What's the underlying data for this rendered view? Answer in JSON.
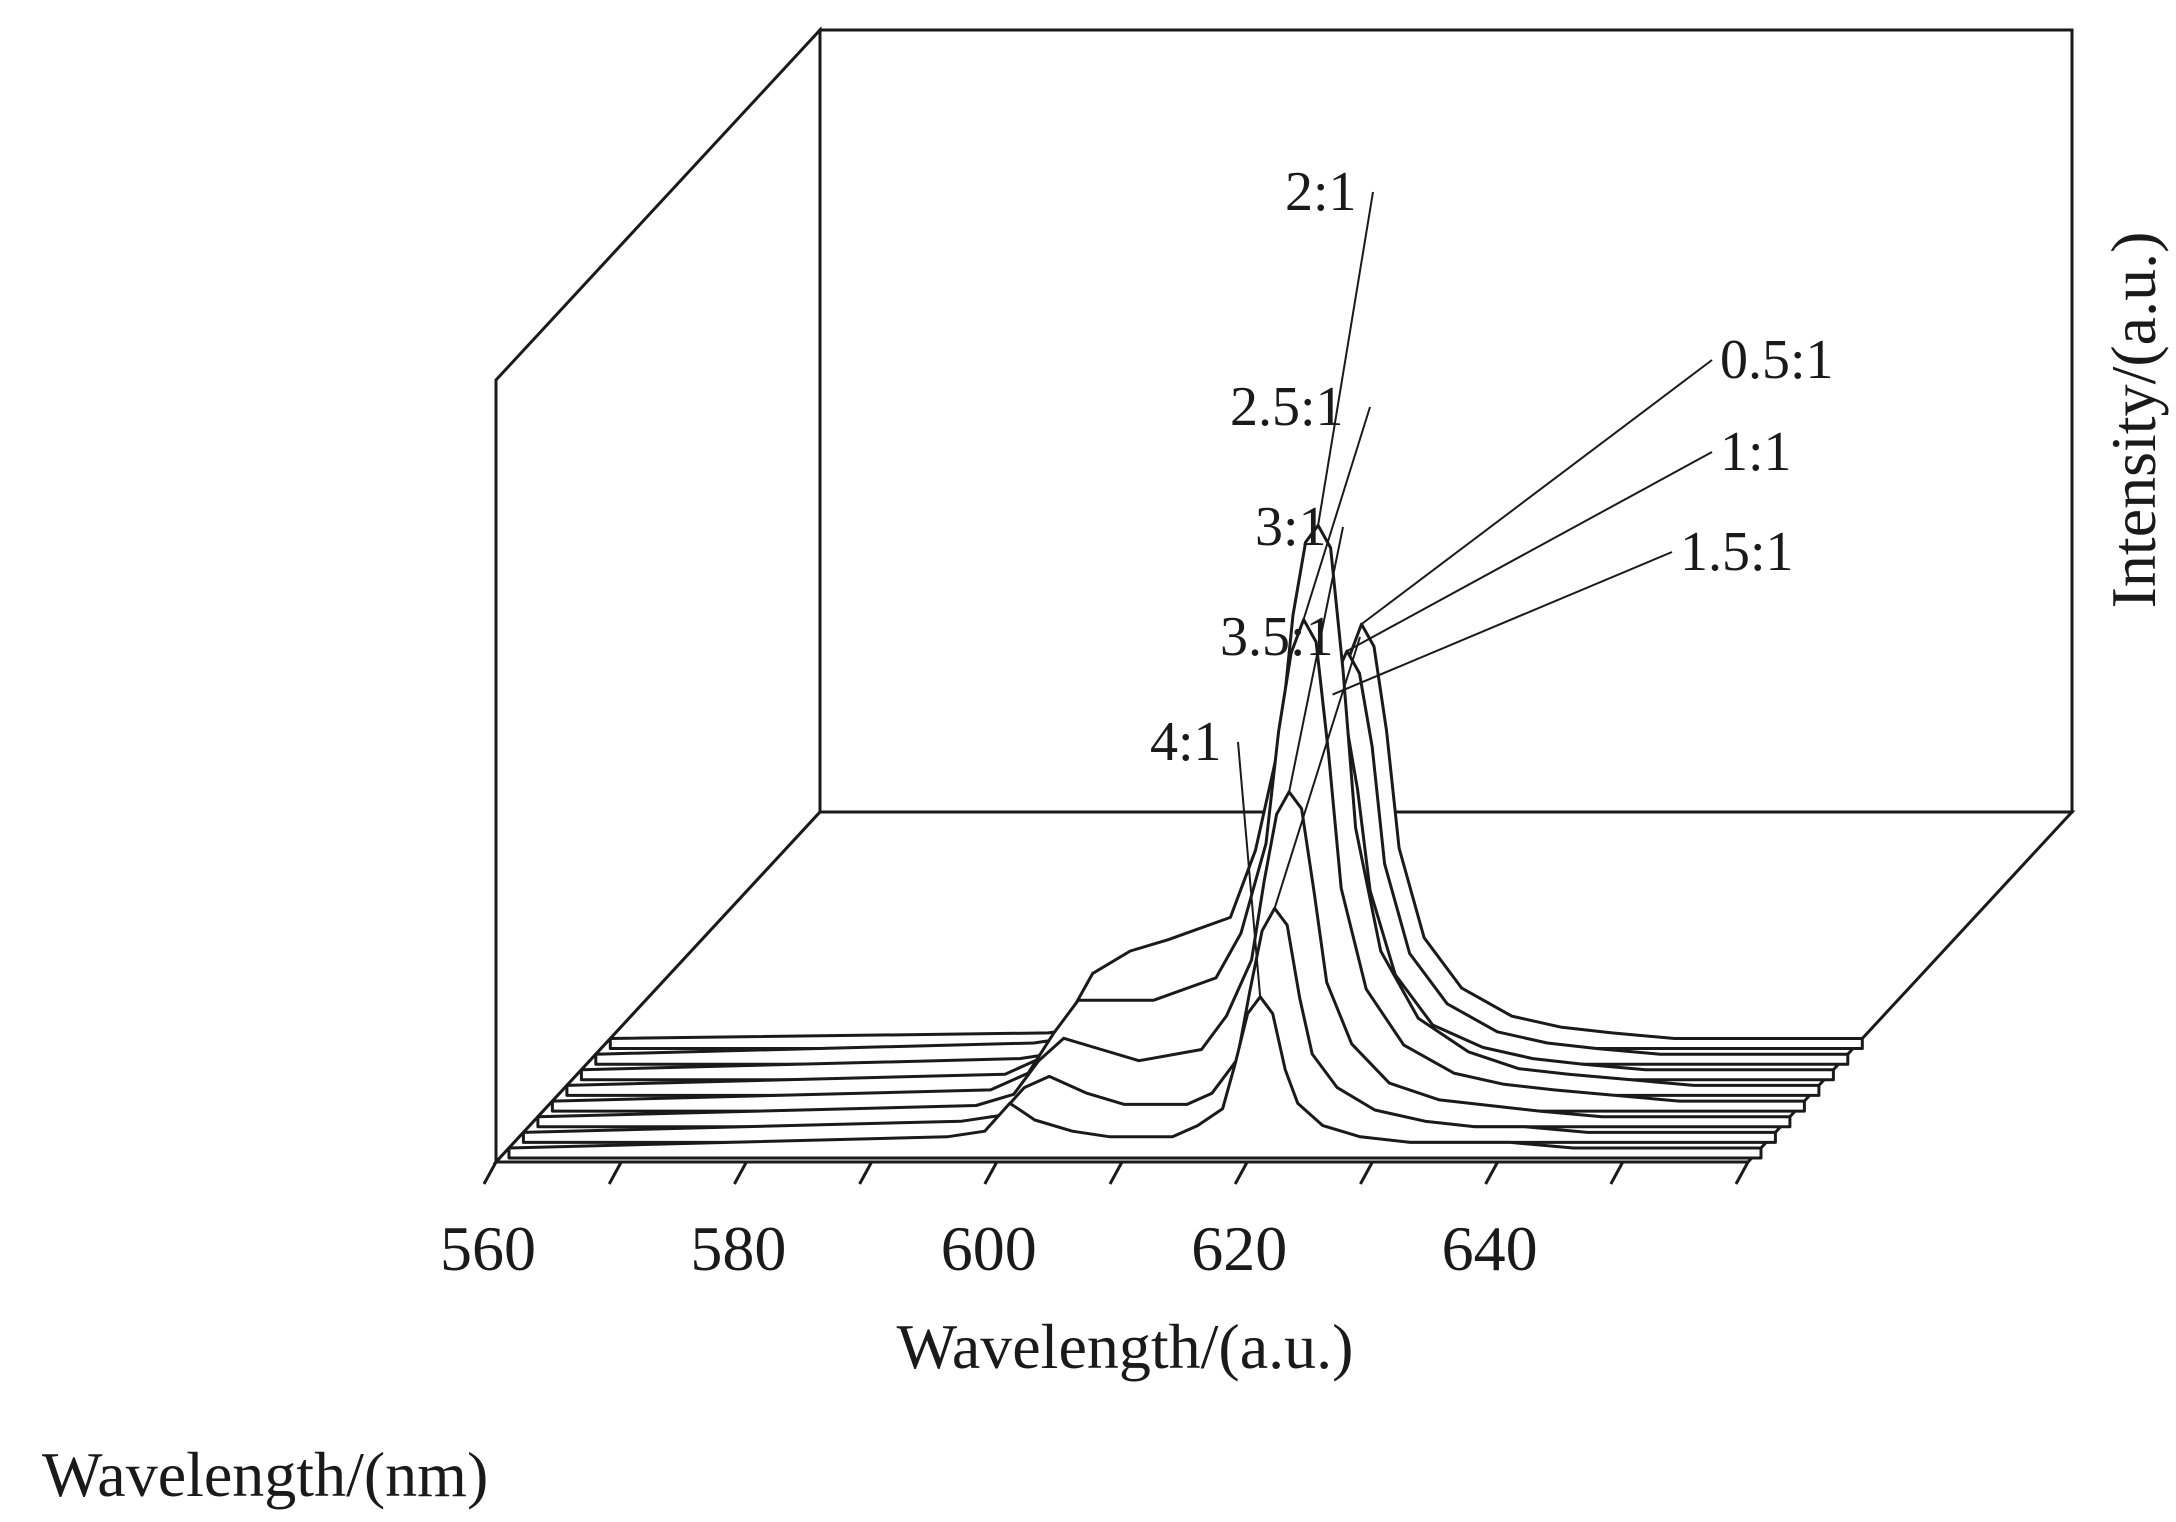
{
  "chart_data": {
    "type": "line",
    "subtype": "3d-waterfall",
    "xlabel": "Wavelength/(a.u.)",
    "zlabel": "Intensity/(a.u.)",
    "xlim": [
      560,
      660
    ],
    "xticks": [
      560,
      580,
      600,
      620,
      640
    ],
    "x": [
      560,
      595,
      598,
      600,
      602,
      605,
      608,
      613,
      615,
      617,
      618,
      619,
      620,
      621,
      622,
      623,
      625,
      628,
      632,
      636,
      640,
      645,
      650,
      660
    ],
    "series": [
      {
        "name": "4:1",
        "values": [
          0,
          0.02,
          0.03,
          0.08,
          0.05,
          0.03,
          0.02,
          0.02,
          0.04,
          0.07,
          0.15,
          0.24,
          0.27,
          0.24,
          0.14,
          0.08,
          0.04,
          0.02,
          0.01,
          0.01,
          0.01,
          0,
          0,
          0
        ]
      },
      {
        "name": "3.5:1",
        "values": [
          0,
          0.02,
          0.03,
          0.08,
          0.1,
          0.07,
          0.05,
          0.05,
          0.07,
          0.13,
          0.25,
          0.36,
          0.4,
          0.37,
          0.24,
          0.14,
          0.08,
          0.04,
          0.02,
          0.01,
          0.01,
          0,
          0,
          0
        ]
      },
      {
        "name": "3:1",
        "values": [
          0,
          0.02,
          0.04,
          0.1,
          0.14,
          0.12,
          0.1,
          0.12,
          0.18,
          0.28,
          0.42,
          0.54,
          0.58,
          0.55,
          0.4,
          0.24,
          0.13,
          0.06,
          0.03,
          0.02,
          0.01,
          0,
          0,
          0
        ]
      },
      {
        "name": "2.5:1",
        "values": [
          0,
          0.02,
          0.05,
          0.12,
          0.18,
          0.18,
          0.18,
          0.22,
          0.3,
          0.46,
          0.66,
          0.8,
          0.86,
          0.82,
          0.62,
          0.38,
          0.2,
          0.1,
          0.05,
          0.03,
          0.02,
          0.01,
          0,
          0
        ]
      },
      {
        "name": "2:1",
        "values": [
          0,
          0.02,
          0.05,
          0.12,
          0.2,
          0.24,
          0.26,
          0.3,
          0.42,
          0.62,
          0.84,
          0.97,
          1.0,
          0.96,
          0.74,
          0.46,
          0.24,
          0.12,
          0.06,
          0.03,
          0.02,
          0.01,
          0,
          0
        ]
      },
      {
        "name": "1.5:1",
        "values": [
          0,
          0.02,
          0.03,
          0.06,
          0.1,
          0.12,
          0.14,
          0.18,
          0.26,
          0.4,
          0.56,
          0.64,
          0.67,
          0.63,
          0.5,
          0.32,
          0.17,
          0.08,
          0.04,
          0.02,
          0.01,
          0,
          0,
          0
        ]
      },
      {
        "name": "1:1",
        "values": [
          0,
          0.02,
          0.03,
          0.05,
          0.08,
          0.1,
          0.12,
          0.16,
          0.24,
          0.4,
          0.56,
          0.67,
          0.72,
          0.68,
          0.55,
          0.34,
          0.18,
          0.09,
          0.04,
          0.02,
          0.01,
          0,
          0,
          0
        ]
      },
      {
        "name": "0.5:1",
        "values": [
          0,
          0.01,
          0.02,
          0.04,
          0.06,
          0.08,
          0.1,
          0.14,
          0.2,
          0.36,
          0.54,
          0.68,
          0.74,
          0.7,
          0.55,
          0.34,
          0.18,
          0.09,
          0.04,
          0.02,
          0.01,
          0,
          0,
          0
        ]
      }
    ],
    "grid": false,
    "legend": "labels-on-peaks"
  },
  "caption": "Wavelength/(nm)"
}
